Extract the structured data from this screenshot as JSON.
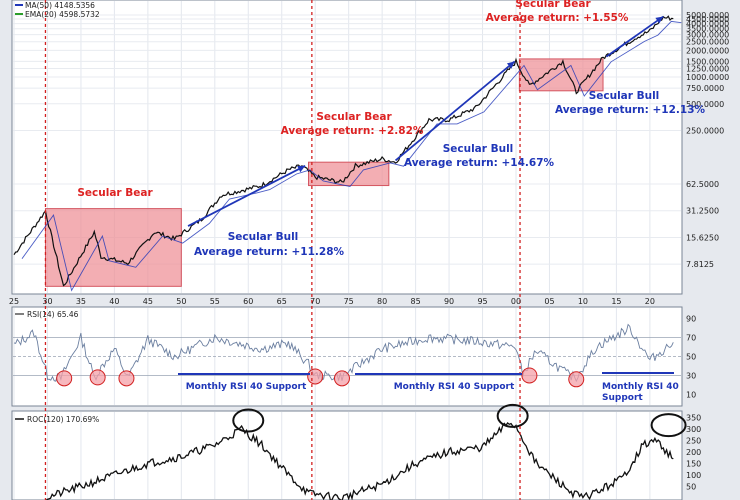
{
  "chart_data": {
    "type": "line",
    "panels": {
      "price": {
        "scale": "log",
        "legend": [
          {
            "label": "MA(50) 4148.5356",
            "color": "#1f36b8"
          },
          {
            "label": "EMA(20) 4598.5732",
            "color": "#2a9d2a"
          }
        ],
        "y_ticks": [
          "7.8125",
          "15.6250",
          "31.2500",
          "62.5000",
          "250.0000",
          "500.0000",
          "750.0000",
          "1000.0000",
          "1250.0000",
          "1500.0000",
          "2000.0000",
          "2500.0000",
          "3000.0000",
          "3500.0000",
          "4000.0000",
          "4500.0000",
          "5000.0000"
        ],
        "x_ticks": [
          "25",
          "30",
          "35",
          "40",
          "45",
          "50",
          "55",
          "60",
          "65",
          "70",
          "75",
          "80",
          "85",
          "90",
          "95",
          "00",
          "05",
          "10",
          "15",
          "20"
        ],
        "series": [
          {
            "x": [
              1925,
              1929.7,
              1932.4,
              1937,
              1938,
              1942,
              1946,
              1949,
              1953,
              1956,
              1960,
              1962,
              1966,
              1968,
              1970,
              1974,
              1976,
              1980,
              1982,
              1987,
              1990,
              1994,
              2000,
              2002,
              2007,
              2009,
              2013,
              2018,
              2020,
              2022,
              2023.5
            ],
            "y": [
              10,
              31,
              4.4,
              18,
              9.5,
              8,
              18,
              15,
              25,
              47,
              55,
              60,
              90,
              100,
              75,
              65,
              100,
              120,
              110,
              330,
              330,
              450,
              1500,
              800,
              1500,
              680,
              1650,
              2800,
              3300,
              4700,
              4550
            ]
          }
        ],
        "annotations": [
          {
            "title": "Secular Bear",
            "x_start": 1929.7,
            "x_end": 1950,
            "y_low": 4.4,
            "y_high": 33
          },
          {
            "title": "Secular Bull",
            "subtitle": "Average return:  +11.28%"
          },
          {
            "title": "Secular Bear",
            "subtitle": "Average return:  +2.82%",
            "x_start": 1969,
            "x_end": 1981,
            "y_low": 60,
            "y_high": 110
          },
          {
            "title": "Secular Bull",
            "subtitle": "Average return:  +14.67%"
          },
          {
            "title": "Secular Bear",
            "subtitle": "Average return:  +1.55%",
            "x_start": 2000.5,
            "x_end": 2013,
            "y_low": 700,
            "y_high": 1600
          },
          {
            "title": "Secular Bull",
            "subtitle": "Average return:  +12.13%"
          }
        ],
        "cycle_markers_x": [
          1929.7,
          1969.5,
          2000.6
        ]
      },
      "rsi": {
        "legend": "RSI(14) 65.46",
        "ylim": [
          0,
          100
        ],
        "y_ticks": [
          "90",
          "70",
          "50",
          "30",
          "10"
        ],
        "reference_levels": [
          70,
          50,
          30
        ],
        "support_labels": [
          "Monthly RSI 40 Support",
          "Monthly RSI 40 Support",
          "Monthly RSI 40",
          "Support"
        ],
        "series": [
          {
            "x": [
              1925,
              1928,
              1930,
              1932,
              1935,
              1937,
              1940,
              1942,
              1945,
              1949,
              1955,
              1962,
              1966,
              1969,
              1970,
              1974,
              1980,
              1987,
              1994,
              2000,
              2001,
              2003,
              2008,
              2009,
              2012,
              2017,
              2020,
              2023.5
            ],
            "y": [
              62,
              75,
              30,
              27,
              70,
              28,
              58,
              27,
              68,
              50,
              70,
              58,
              64,
              42,
              30,
              29,
              58,
              70,
              66,
              60,
              31,
              56,
              30,
              28,
              60,
              80,
              46,
              65
            ]
          }
        ]
      },
      "roc": {
        "legend": "ROC(120) 170.69%",
        "y_ticks": [
          "350",
          "300",
          "250",
          "200",
          "150",
          "100",
          "50"
        ],
        "series": [
          {
            "x": [
              1929.7,
              1935,
              1940,
              1945,
              1950,
              1955,
              1959,
              1962,
              1966,
              1969,
              1974,
              1980,
              1985,
              1990,
              1995,
              1999,
              2000,
              2003,
              2008,
              2010,
              2013,
              2016,
              2019,
              2021,
              2023.5
            ],
            "y": [
              0,
              50,
              100,
              150,
              180,
              230,
              300,
              230,
              100,
              20,
              0,
              60,
              150,
              200,
              220,
              330,
              310,
              150,
              30,
              0,
              40,
              90,
              230,
              250,
              170
            ]
          }
        ]
      }
    }
  },
  "colors": {
    "bear_box": "#ef8f96",
    "markers": "#d22020",
    "arrow": "#1f36b8",
    "support": "#1f36b8",
    "price_line": "#111111"
  }
}
